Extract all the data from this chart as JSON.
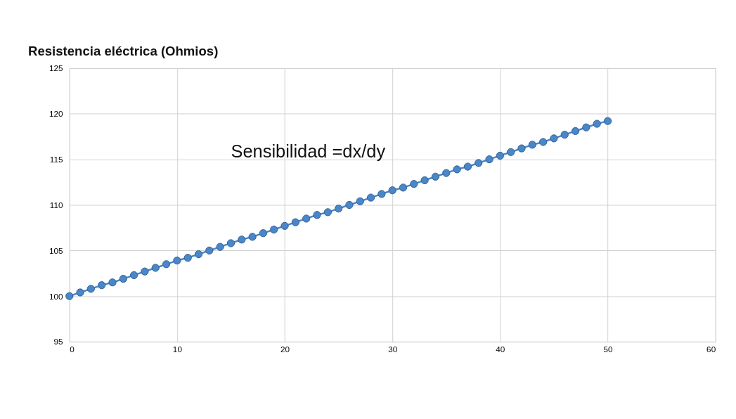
{
  "chart_data": {
    "type": "line",
    "title": "Resistencia eléctrica (Ohmios)",
    "x": [
      0,
      1,
      2,
      3,
      4,
      5,
      6,
      7,
      8,
      9,
      10,
      11,
      12,
      13,
      14,
      15,
      16,
      17,
      18,
      19,
      20,
      21,
      22,
      23,
      24,
      25,
      26,
      27,
      28,
      29,
      30,
      31,
      32,
      33,
      34,
      35,
      36,
      37,
      38,
      39,
      40,
      41,
      42,
      43,
      44,
      45,
      46,
      47,
      48,
      49,
      50
    ],
    "series": [
      {
        "color": "#4a86c8",
        "values": [
          100.0,
          100.4,
          100.8,
          101.2,
          101.5,
          101.9,
          102.3,
          102.7,
          103.1,
          103.5,
          103.9,
          104.2,
          104.6,
          105.0,
          105.4,
          105.8,
          106.2,
          106.5,
          106.9,
          107.3,
          107.7,
          108.1,
          108.5,
          108.9,
          109.2,
          109.6,
          110.0,
          110.4,
          110.8,
          111.2,
          111.6,
          111.9,
          112.3,
          112.7,
          113.1,
          113.5,
          113.9,
          114.2,
          114.6,
          115.0,
          115.4,
          115.8,
          116.2,
          116.6,
          116.9,
          117.3,
          117.7,
          118.1,
          118.5,
          118.9,
          119.2
        ]
      }
    ],
    "xlim": [
      0,
      60
    ],
    "xticks": [
      0,
      10,
      20,
      30,
      40,
      50,
      60
    ],
    "ylim": [
      95,
      125
    ],
    "yticks": [
      95,
      100,
      105,
      110,
      115,
      120,
      125
    ],
    "grid": true,
    "marker": "circle",
    "line_style": "solid",
    "annotations": [
      "Sensibilidad =dx/dy"
    ]
  }
}
